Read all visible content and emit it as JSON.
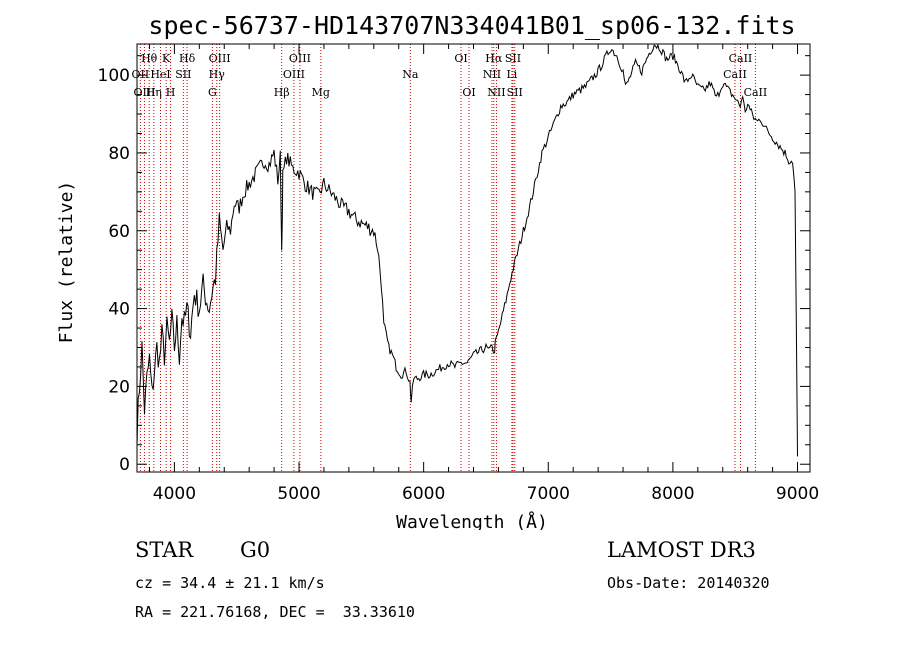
{
  "chart_data": {
    "type": "line",
    "title": "spec-56737-HD143707N334041B01_sp06-132.fits",
    "xlabel": "Wavelength (Å)",
    "ylabel": "Flux (relative)",
    "xlim": [
      3700,
      9100
    ],
    "ylim": [
      -2,
      108
    ],
    "x_ticks": [
      4000,
      5000,
      6000,
      7000,
      8000,
      9000
    ],
    "y_ticks": [
      0,
      20,
      40,
      60,
      80,
      100
    ],
    "series": [
      {
        "name": "flux",
        "x": [
          3700,
          3720,
          3740,
          3760,
          3780,
          3800,
          3820,
          3840,
          3860,
          3880,
          3900,
          3920,
          3940,
          3960,
          3980,
          4000,
          4020,
          4040,
          4060,
          4080,
          4100,
          4130,
          4160,
          4200,
          4230,
          4260,
          4280,
          4300,
          4330,
          4360,
          4390,
          4420,
          4450,
          4480,
          4520,
          4560,
          4600,
          4640,
          4680,
          4720,
          4760,
          4800,
          4830,
          4850,
          4861,
          4870,
          4900,
          4950,
          5000,
          5050,
          5100,
          5150,
          5200,
          5250,
          5300,
          5350,
          5400,
          5450,
          5500,
          5550,
          5600,
          5630,
          5660,
          5680,
          5700,
          5720,
          5750,
          5780,
          5820,
          5860,
          5890,
          5900,
          5920,
          5950,
          6000,
          6050,
          6100,
          6150,
          6200,
          6250,
          6300,
          6350,
          6400,
          6450,
          6500,
          6530,
          6550,
          6563,
          6575,
          6600,
          6630,
          6660,
          6700,
          6750,
          6800,
          6850,
          6900,
          6950,
          7000,
          7050,
          7100,
          7150,
          7200,
          7250,
          7300,
          7350,
          7400,
          7450,
          7500,
          7550,
          7600,
          7620,
          7650,
          7700,
          7750,
          7800,
          7850,
          7900,
          7950,
          8000,
          8050,
          8100,
          8150,
          8200,
          8250,
          8300,
          8350,
          8400,
          8450,
          8500,
          8540,
          8560,
          8580,
          8600,
          8620,
          8650,
          8680,
          8700,
          8750,
          8800,
          8850,
          8900,
          8930,
          8960,
          8980,
          9000
        ],
        "values": [
          8,
          20,
          30,
          14,
          22,
          27,
          18,
          24,
          30,
          26,
          33,
          28,
          35,
          31,
          37,
          30,
          36,
          28,
          38,
          36,
          40,
          34,
          44,
          40,
          46,
          42,
          40,
          44,
          48,
          62,
          55,
          61,
          60,
          67,
          66,
          70,
          72,
          74,
          76,
          78,
          77,
          80,
          73,
          79,
          55,
          74,
          79,
          76,
          75,
          72,
          70,
          69,
          72,
          70,
          68,
          66,
          65,
          63,
          62,
          61,
          60,
          56,
          47,
          35,
          33,
          30,
          28,
          25,
          23,
          24,
          21,
          16,
          22,
          22,
          23,
          23,
          24,
          25,
          26,
          25,
          26,
          26,
          28,
          29,
          30,
          29,
          31,
          28,
          31,
          34,
          38,
          42,
          48,
          54,
          60,
          66,
          73,
          80,
          84,
          88,
          92,
          93,
          95,
          96,
          97,
          99,
          101,
          104,
          107,
          105,
          101,
          97,
          99,
          103,
          101,
          105,
          108,
          107,
          104,
          105,
          102,
          98,
          100,
          97,
          96,
          98,
          94,
          98,
          96,
          94,
          92,
          95,
          90,
          93,
          91,
          89,
          88,
          89,
          86,
          84,
          82,
          80,
          78,
          78,
          70,
          2
        ]
      }
    ],
    "line_markers": [
      {
        "label": "Hθ",
        "row": 1,
        "wavelength": 3798
      },
      {
        "label": "OII",
        "row": 2,
        "wavelength": 3727
      },
      {
        "label": "OIII",
        "row": 3,
        "wavelength": 3760
      },
      {
        "label": "HeI",
        "row": 2,
        "wavelength": 3889
      },
      {
        "label": "Hη",
        "row": 3,
        "wavelength": 3835
      },
      {
        "label": "K",
        "row": 1,
        "wavelength": 3934
      },
      {
        "label": "SII",
        "row": 2,
        "wavelength": 4072
      },
      {
        "label": "H",
        "row": 3,
        "wavelength": 3969
      },
      {
        "label": "Hδ",
        "row": 1,
        "wavelength": 4102
      },
      {
        "label": "OIII",
        "row": 1,
        "wavelength": 4363
      },
      {
        "label": "Hγ",
        "row": 2,
        "wavelength": 4340
      },
      {
        "label": "G",
        "row": 3,
        "wavelength": 4305
      },
      {
        "label": "Hβ",
        "row": 3,
        "wavelength": 4861
      },
      {
        "label": "OIII",
        "row": 1,
        "wavelength": 5007
      },
      {
        "label": "OIII",
        "row": 2,
        "wavelength": 4959
      },
      {
        "label": "Mg",
        "row": 3,
        "wavelength": 5175
      },
      {
        "label": "Na",
        "row": 2,
        "wavelength": 5893
      },
      {
        "label": "OI",
        "row": 1,
        "wavelength": 6300
      },
      {
        "label": "OI",
        "row": 3,
        "wavelength": 6364
      },
      {
        "label": "Hα",
        "row": 1,
        "wavelength": 6563
      },
      {
        "label": "NII",
        "row": 2,
        "wavelength": 6548
      },
      {
        "label": "NII",
        "row": 3,
        "wavelength": 6584
      },
      {
        "label": "SII",
        "row": 1,
        "wavelength": 6717
      },
      {
        "label": "Li",
        "row": 2,
        "wavelength": 6708
      },
      {
        "label": "SII",
        "row": 3,
        "wavelength": 6731
      },
      {
        "label": "CaII",
        "row": 1,
        "wavelength": 8542
      },
      {
        "label": "CaII",
        "row": 2,
        "wavelength": 8498
      },
      {
        "label": "CaII",
        "row": 3,
        "wavelength": 8662
      }
    ]
  },
  "info": {
    "object_class": "STAR",
    "subclass": "G0",
    "survey": "LAMOST DR3",
    "redshift": "cz = 34.4 ± 21.1 km/s",
    "obs_date": "Obs-Date: 20140320",
    "coords": "RA = 221.76168, DEC =  33.33610"
  },
  "colors": {
    "spectrum": "#000000",
    "marker_line": "#cc0000",
    "axes": "#000000"
  }
}
